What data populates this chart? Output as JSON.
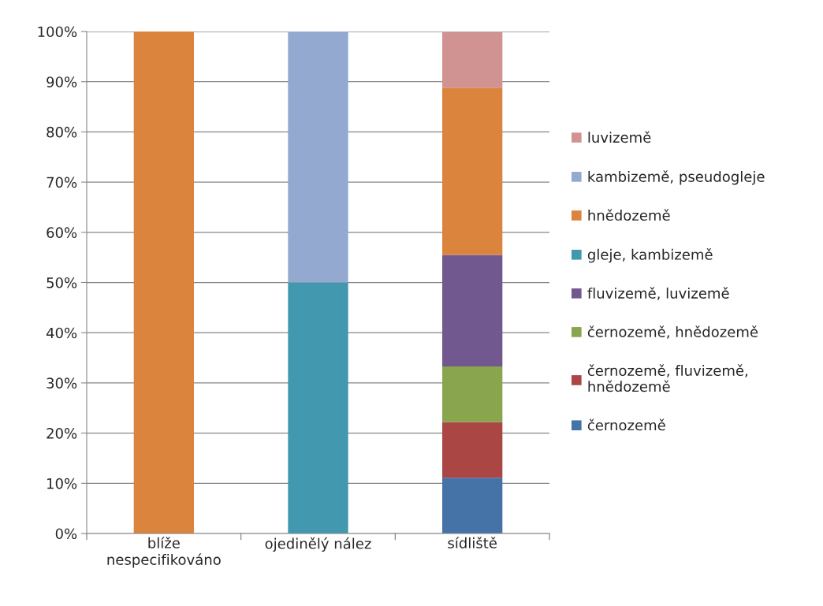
{
  "chart_data": {
    "type": "bar",
    "stacked": true,
    "categories": [
      "blíže\nnespecifikováno",
      "ojedinělý nález",
      "sídliště"
    ],
    "series": [
      {
        "name": "černozemě",
        "color": "#4572a7",
        "values": [
          0,
          0,
          11.1
        ]
      },
      {
        "name": "černozemě, fluvizemě,\nhnědozemě",
        "color": "#aa4643",
        "values": [
          0,
          0,
          11.1
        ]
      },
      {
        "name": "černozemě, hnědozemě",
        "color": "#89a54e",
        "values": [
          0,
          0,
          11.1
        ]
      },
      {
        "name": "fluvizemě, luvizemě",
        "color": "#71588f",
        "values": [
          0,
          0,
          22.2
        ]
      },
      {
        "name": "gleje, kambizemě",
        "color": "#4198af",
        "values": [
          0,
          50,
          0
        ]
      },
      {
        "name": "hnědozemě",
        "color": "#db843d",
        "values": [
          100,
          0,
          33.3
        ]
      },
      {
        "name": "kambizemě, pseudogleje",
        "color": "#93a9cf",
        "values": [
          0,
          50,
          0
        ]
      },
      {
        "name": "luvizemě",
        "color": "#d19392",
        "values": [
          0,
          0,
          11.1
        ]
      }
    ],
    "ylim": [
      0,
      100
    ],
    "yticks": [
      {
        "value": 0,
        "label": "0%"
      },
      {
        "value": 10,
        "label": "10%"
      },
      {
        "value": 20,
        "label": "20%"
      },
      {
        "value": 30,
        "label": "30%"
      },
      {
        "value": 40,
        "label": "40%"
      },
      {
        "value": 50,
        "label": "50%"
      },
      {
        "value": 60,
        "label": "60%"
      },
      {
        "value": 70,
        "label": "70%"
      },
      {
        "value": 80,
        "label": "80%"
      },
      {
        "value": 90,
        "label": "90%"
      },
      {
        "value": 100,
        "label": "100%"
      }
    ],
    "grid": "y",
    "legend": "right"
  }
}
